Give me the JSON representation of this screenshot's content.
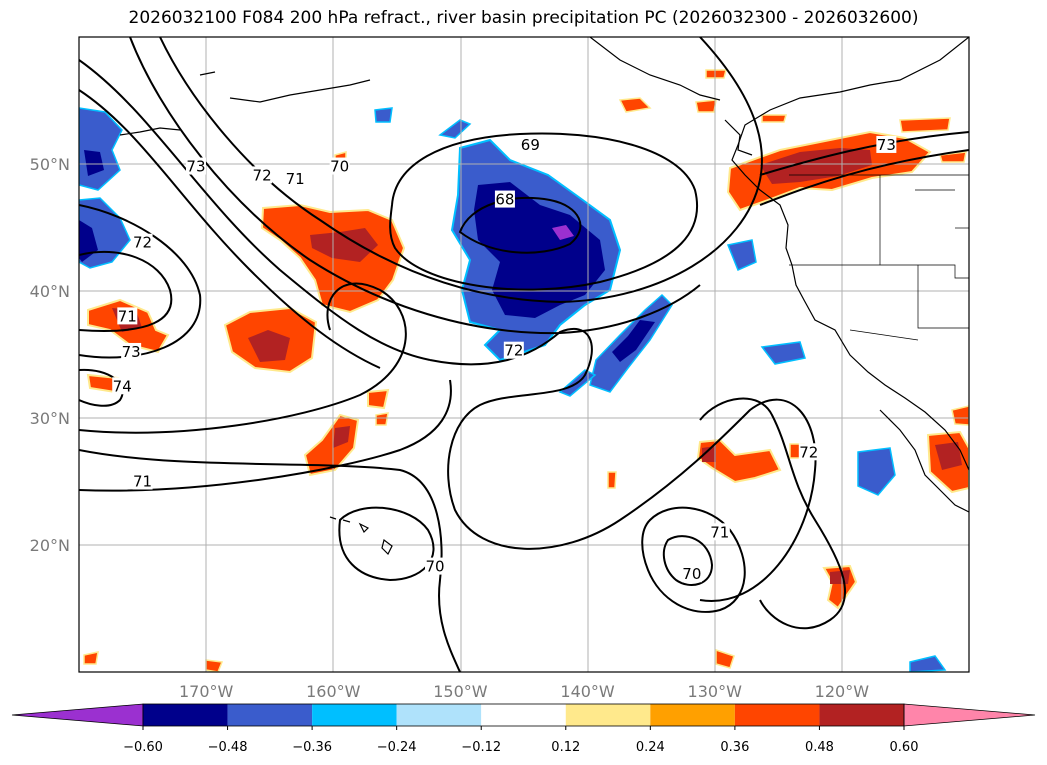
{
  "title": "2026032100 F084 200 hPa refract., river basin precipitation PC (2026032300 - 2026032600)",
  "chart_data": {
    "type": "map",
    "title": "2026032100 F084 200 hPa refract., river basin precipitation PC (2026032300 - 2026032600)",
    "lon_range": [
      -180,
      -110
    ],
    "lat_range": [
      10,
      60
    ],
    "lon_ticks": [
      {
        "value": -170,
        "label": "170°W"
      },
      {
        "value": -160,
        "label": "160°W"
      },
      {
        "value": -150,
        "label": "150°W"
      },
      {
        "value": -140,
        "label": "140°W"
      },
      {
        "value": -130,
        "label": "130°W"
      },
      {
        "value": -120,
        "label": "120°W"
      }
    ],
    "lat_ticks": [
      {
        "value": 50,
        "label": "50°N"
      },
      {
        "value": 40,
        "label": "40°N"
      },
      {
        "value": 30,
        "label": "30°N"
      },
      {
        "value": 20,
        "label": "20°N"
      }
    ],
    "grid": true,
    "contour_labels": [
      {
        "text": "69",
        "lon": -144.5,
        "lat": 51.5
      },
      {
        "text": "68",
        "lon": -146.5,
        "lat": 47.2
      },
      {
        "text": "73",
        "lon": -170.8,
        "lat": 49.8
      },
      {
        "text": "72",
        "lon": -165.6,
        "lat": 49.1
      },
      {
        "text": "71",
        "lon": -163.0,
        "lat": 48.8
      },
      {
        "text": "70",
        "lon": -159.5,
        "lat": 49.8
      },
      {
        "text": "72",
        "lon": -175.0,
        "lat": 43.8
      },
      {
        "text": "71",
        "lon": -176.2,
        "lat": 38.0
      },
      {
        "text": "73",
        "lon": -175.9,
        "lat": 35.2
      },
      {
        "text": "74",
        "lon": -176.6,
        "lat": 32.5
      },
      {
        "text": "72",
        "lon": -145.8,
        "lat": 35.3
      },
      {
        "text": "71",
        "lon": -175.0,
        "lat": 25.0
      },
      {
        "text": "70",
        "lon": -152.0,
        "lat": 18.3
      },
      {
        "text": "71",
        "lon": -129.6,
        "lat": 21.0
      },
      {
        "text": "70",
        "lon": -131.8,
        "lat": 17.7
      },
      {
        "text": "72",
        "lon": -122.6,
        "lat": 27.3
      },
      {
        "text": "73",
        "lon": -116.5,
        "lat": 51.5
      }
    ],
    "precip_regions": [
      {
        "name": "NE Pacific negative core",
        "lon": -144,
        "lat": 44,
        "peak": -0.65
      },
      {
        "name": "Aleutian negative",
        "lon": -178,
        "lat": 48,
        "peak": -0.5
      },
      {
        "name": "Subtropical negative band",
        "lon": -137,
        "lat": 35,
        "peak": -0.48
      },
      {
        "name": "Central Pacific positive",
        "lon": -160,
        "lat": 44,
        "peak": 0.5
      },
      {
        "name": "Positive near 165W 35N",
        "lon": -165,
        "lat": 35,
        "peak": 0.5
      },
      {
        "name": "Pacific Northwest positive",
        "lon": -121,
        "lat": 49,
        "peak": 0.5
      },
      {
        "name": "Baja positive",
        "lon": -112,
        "lat": 27,
        "peak": 0.5
      }
    ],
    "colorbar": {
      "levels": [
        -0.6,
        -0.48,
        -0.36,
        -0.24,
        -0.12,
        0.12,
        0.24,
        0.36,
        0.48,
        0.6
      ],
      "tick_labels": [
        "−0.60",
        "−0.48",
        "−0.36",
        "−0.24",
        "−0.12",
        "0.12",
        "0.24",
        "0.36",
        "0.48",
        "0.60"
      ],
      "colors": [
        "#9b30d0",
        "#00008b",
        "#3a5ccc",
        "#00bfff",
        "#afe2fb",
        "#ffffff",
        "#ffe98c",
        "#ffa000",
        "#ff4500",
        "#b22222",
        "#ff85aa"
      ],
      "extend": "both"
    }
  }
}
